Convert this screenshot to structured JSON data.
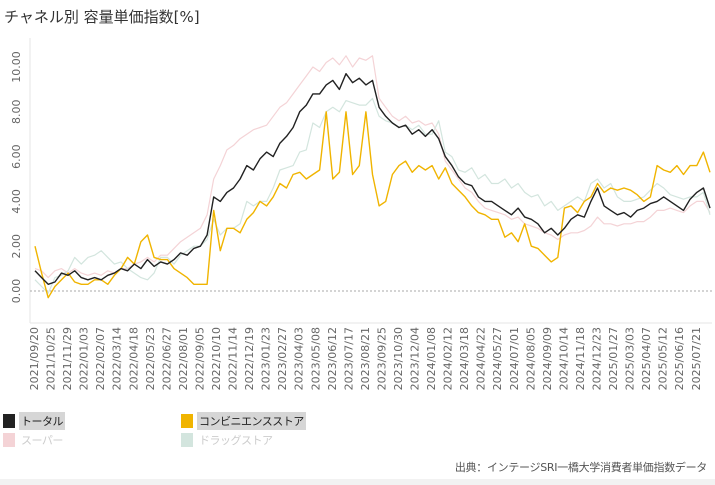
{
  "chart_data": {
    "type": "line",
    "title": "チャネル別  容量単価指数[%]",
    "xlabel": "",
    "ylabel": "",
    "ylim": [
      -0.9,
      10.8
    ],
    "yticks": [
      "0.00",
      "2.00",
      "4.00",
      "6.00",
      "8.00",
      "10.00"
    ],
    "grid": false,
    "zero_line": "dashed",
    "legend_position": "bottom-left",
    "xticks": [
      "2021/09/20",
      "2021/10/25",
      "2021/11/29",
      "2022/01/03",
      "2022/02/07",
      "2022/03/14",
      "2022/04/18",
      "2022/05/23",
      "2022/06/27",
      "2022/08/01",
      "2022/09/05",
      "2022/10/10",
      "2022/11/14",
      "2022/12/19",
      "2023/01/23",
      "2023/02/27",
      "2023/04/03",
      "2023/05/08",
      "2023/06/12",
      "2023/07/17",
      "2023/08/21",
      "2023/09/25",
      "2023/10/30",
      "2023/12/04",
      "2024/01/08",
      "2024/02/12",
      "2024/03/18",
      "2024/04/22",
      "2024/05/27",
      "2024/07/01",
      "2024/08/05",
      "2024/09/09",
      "2024/10/14",
      "2024/11/18",
      "2024/12/23",
      "2025/01/27",
      "2025/03/03",
      "2025/04/07",
      "2025/05/12",
      "2025/06/16",
      "2025/07/21"
    ],
    "x": [
      "2021/09/20",
      "2021/10/04",
      "2021/10/18",
      "2021/11/01",
      "2021/11/15",
      "2021/11/29",
      "2021/12/13",
      "2021/12/27",
      "2022/01/10",
      "2022/01/24",
      "2022/02/07",
      "2022/02/21",
      "2022/03/07",
      "2022/03/21",
      "2022/04/04",
      "2022/04/18",
      "2022/05/02",
      "2022/05/16",
      "2022/05/30",
      "2022/06/13",
      "2022/06/27",
      "2022/07/11",
      "2022/07/25",
      "2022/08/08",
      "2022/08/22",
      "2022/09/05",
      "2022/09/19",
      "2022/10/03",
      "2022/10/17",
      "2022/10/31",
      "2022/11/14",
      "2022/11/28",
      "2022/12/12",
      "2022/12/26",
      "2023/01/09",
      "2023/01/23",
      "2023/02/06",
      "2023/02/20",
      "2023/03/06",
      "2023/03/20",
      "2023/04/03",
      "2023/04/17",
      "2023/05/01",
      "2023/05/15",
      "2023/05/29",
      "2023/06/12",
      "2023/06/26",
      "2023/07/10",
      "2023/07/24",
      "2023/08/07",
      "2023/08/21",
      "2023/09/04",
      "2023/09/18",
      "2023/10/02",
      "2023/10/16",
      "2023/10/30",
      "2023/11/13",
      "2023/11/27",
      "2023/12/11",
      "2023/12/25",
      "2024/01/08",
      "2024/01/22",
      "2024/02/05",
      "2024/02/19",
      "2024/03/04",
      "2024/03/18",
      "2024/04/01",
      "2024/04/15",
      "2024/04/29",
      "2024/05/13",
      "2024/05/27",
      "2024/06/10",
      "2024/06/24",
      "2024/07/08",
      "2024/07/22",
      "2024/08/05",
      "2024/08/19",
      "2024/09/02",
      "2024/09/16",
      "2024/09/30",
      "2024/10/14",
      "2024/10/28",
      "2024/11/11",
      "2024/11/25",
      "2024/12/09",
      "2024/12/23",
      "2025/01/06",
      "2025/01/20",
      "2025/02/03",
      "2025/02/17",
      "2025/03/03",
      "2025/03/17",
      "2025/03/31",
      "2025/04/14",
      "2025/04/28",
      "2025/05/12",
      "2025/05/26",
      "2025/06/09",
      "2025/06/23",
      "2025/07/07",
      "2025/07/21",
      "2025/08/04",
      "2025/08/18"
    ],
    "series": [
      {
        "name": "スーパー",
        "color": "#f4d3d6",
        "active": false,
        "values": [
          1.0,
          0.9,
          0.6,
          0.9,
          1.0,
          0.8,
          1.0,
          0.8,
          0.7,
          0.8,
          0.7,
          0.9,
          0.8,
          1.0,
          1.0,
          1.2,
          1.3,
          1.5,
          1.3,
          1.6,
          1.6,
          1.9,
          2.2,
          2.4,
          2.6,
          2.8,
          3.4,
          5.0,
          5.6,
          6.3,
          6.5,
          6.8,
          7.0,
          7.2,
          7.3,
          7.4,
          7.8,
          8.2,
          8.4,
          8.8,
          9.2,
          9.6,
          10.0,
          9.8,
          10.2,
          10.4,
          10.1,
          10.5,
          10.0,
          10.4,
          10.3,
          10.5,
          8.6,
          8.2,
          7.8,
          7.6,
          7.8,
          7.5,
          7.6,
          7.4,
          7.5,
          7.0,
          5.8,
          5.4,
          5.0,
          4.6,
          4.4,
          4.0,
          3.7,
          3.6,
          3.5,
          3.4,
          3.2,
          3.3,
          3.0,
          2.9,
          2.8,
          2.6,
          2.5,
          2.3,
          2.5,
          2.6,
          2.6,
          2.7,
          2.9,
          3.3,
          3.0,
          3.0,
          2.9,
          3.0,
          3.0,
          3.1,
          3.1,
          3.3,
          3.6,
          3.6,
          3.7,
          3.6,
          3.5,
          3.8,
          4.0,
          4.0,
          3.5
        ]
      },
      {
        "name": "ドラッグストア",
        "color": "#d3e5de",
        "active": false,
        "values": [
          0.5,
          0.2,
          -0.1,
          0.6,
          0.7,
          0.9,
          1.5,
          1.2,
          1.5,
          1.6,
          1.8,
          1.5,
          1.2,
          1.3,
          1.0,
          0.8,
          0.6,
          0.5,
          0.8,
          1.5,
          1.5,
          1.2,
          1.6,
          1.8,
          2.0,
          2.0,
          2.3,
          3.2,
          2.5,
          2.8,
          2.8,
          3.0,
          4.0,
          3.8,
          4.0,
          4.0,
          4.6,
          5.4,
          5.5,
          5.6,
          6.2,
          6.3,
          7.5,
          7.3,
          8.0,
          8.2,
          8.0,
          8.5,
          8.4,
          8.3,
          8.3,
          8.6,
          7.8,
          7.6,
          7.5,
          7.3,
          7.4,
          7.2,
          7.4,
          7.0,
          7.0,
          7.6,
          6.2,
          6.0,
          5.4,
          5.3,
          5.5,
          5.0,
          5.2,
          4.8,
          4.8,
          5.0,
          4.6,
          4.8,
          4.4,
          4.2,
          4.3,
          3.8,
          4.0,
          3.6,
          3.8,
          4.0,
          4.2,
          4.0,
          4.8,
          5.0,
          4.6,
          4.8,
          4.2,
          4.0,
          4.0,
          4.1,
          4.2,
          4.5,
          4.8,
          4.6,
          4.3,
          4.2,
          4.1,
          4.2,
          4.2,
          4.4,
          3.4
        ]
      },
      {
        "name": "コンビニエンスストア",
        "color": "#f0b400",
        "active": true,
        "values": [
          2.0,
          0.8,
          -0.3,
          0.2,
          0.5,
          0.8,
          0.4,
          0.3,
          0.3,
          0.5,
          0.5,
          0.3,
          0.7,
          1.0,
          1.5,
          1.2,
          2.2,
          2.5,
          1.5,
          1.4,
          1.4,
          1.0,
          0.8,
          0.6,
          0.3,
          0.3,
          0.3,
          3.6,
          1.8,
          2.8,
          2.8,
          2.6,
          3.2,
          3.5,
          4.0,
          3.8,
          4.2,
          4.8,
          4.6,
          5.2,
          5.3,
          5.0,
          5.2,
          5.4,
          8.0,
          5.0,
          5.3,
          8.0,
          5.2,
          5.6,
          8.0,
          5.2,
          3.8,
          4.0,
          5.2,
          5.6,
          5.8,
          5.3,
          5.6,
          5.4,
          5.6,
          5.0,
          5.5,
          4.8,
          4.5,
          4.2,
          3.8,
          3.5,
          3.4,
          3.2,
          3.2,
          2.4,
          2.6,
          2.2,
          3.0,
          2.0,
          1.9,
          1.6,
          1.3,
          1.5,
          3.7,
          3.8,
          3.5,
          4.0,
          4.2,
          4.8,
          4.4,
          4.6,
          4.5,
          4.6,
          4.5,
          4.3,
          4.0,
          4.2,
          5.6,
          5.4,
          5.3,
          5.6,
          5.2,
          5.6,
          5.6,
          6.2,
          5.3
        ]
      },
      {
        "name": "トータル",
        "color": "#222222",
        "active": true,
        "values": [
          0.9,
          0.6,
          0.3,
          0.4,
          0.8,
          0.7,
          0.9,
          0.6,
          0.5,
          0.6,
          0.5,
          0.7,
          0.8,
          1.0,
          0.9,
          1.2,
          1.0,
          1.4,
          1.1,
          1.3,
          1.2,
          1.4,
          1.7,
          1.6,
          1.9,
          2.0,
          2.5,
          4.2,
          4.0,
          4.4,
          4.6,
          5.0,
          5.6,
          5.4,
          5.9,
          6.2,
          6.0,
          6.6,
          6.9,
          7.3,
          8.0,
          8.3,
          8.8,
          8.8,
          9.2,
          9.4,
          9.0,
          9.7,
          9.3,
          9.5,
          9.2,
          9.4,
          8.2,
          7.8,
          7.5,
          7.3,
          7.4,
          7.0,
          7.2,
          6.9,
          7.2,
          6.8,
          6.0,
          5.6,
          5.1,
          4.8,
          4.7,
          4.2,
          4.0,
          4.0,
          3.8,
          3.6,
          3.4,
          3.7,
          3.3,
          3.2,
          3.0,
          2.6,
          2.8,
          2.5,
          2.8,
          3.2,
          3.4,
          3.3,
          4.0,
          4.6,
          3.8,
          3.6,
          3.4,
          3.5,
          3.3,
          3.6,
          3.7,
          3.9,
          4.0,
          4.2,
          4.0,
          3.8,
          3.6,
          4.1,
          4.4,
          4.6,
          3.7
        ]
      }
    ]
  },
  "legend": [
    {
      "label": "トータル",
      "color": "#222222",
      "active": true
    },
    {
      "label": "コンビニエンスストア",
      "color": "#f0b400",
      "active": true
    },
    {
      "label": "スーパー",
      "color": "#f4d3d6",
      "active": false
    },
    {
      "label": "ドラッグストア",
      "color": "#d3e5de",
      "active": false
    }
  ],
  "source": "出典：インテージSRI一橋大学消費者単価指数データ"
}
